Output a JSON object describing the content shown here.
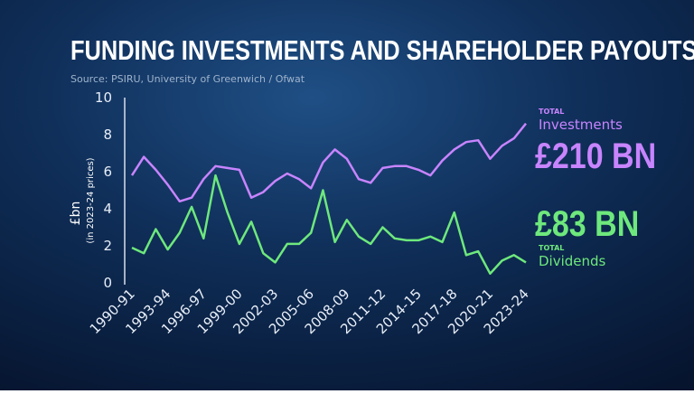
{
  "chart_data": {
    "type": "line",
    "title": "FUNDING INVESTMENTS AND SHAREHOLDER PAYOUTS",
    "subtitle": "Source: PSIRU, University of Greenwich / Ofwat",
    "y_label": "£bn",
    "y_sublabel": "(in 2023-24 prices)",
    "categories": [
      "1990-91",
      null,
      null,
      "1993-94",
      null,
      null,
      "1996-97",
      null,
      null,
      "1999-00",
      null,
      null,
      "2002-03",
      null,
      null,
      "2005-06",
      null,
      null,
      "2008-09",
      null,
      null,
      "2011-12",
      null,
      null,
      "2014-15",
      null,
      null,
      "2017-18",
      null,
      null,
      "2020-21",
      null,
      null,
      "2023-24"
    ],
    "ylim": [
      0,
      10
    ],
    "yticks": [
      0,
      2,
      4,
      6,
      8,
      10
    ],
    "grid": false,
    "series": [
      {
        "name": "Investments",
        "color": "#c884ff",
        "total_label": "TOTAL",
        "total": "£210 BN",
        "values": [
          5.8,
          6.8,
          6.1,
          5.3,
          4.4,
          4.6,
          5.6,
          6.3,
          6.2,
          6.1,
          4.6,
          4.9,
          5.5,
          5.9,
          5.6,
          5.1,
          6.5,
          7.2,
          6.7,
          5.6,
          5.4,
          6.2,
          6.3,
          6.3,
          6.1,
          5.8,
          6.6,
          7.2,
          7.6,
          7.7,
          6.7,
          7.4,
          7.8,
          8.6
        ]
      },
      {
        "name": "Dividends",
        "color": "#6ee87c",
        "total_label": "TOTAL",
        "total": "£83 BN",
        "values": [
          1.9,
          1.6,
          2.9,
          1.8,
          2.7,
          4.1,
          2.4,
          5.8,
          3.8,
          2.1,
          3.3,
          1.6,
          1.1,
          2.1,
          2.1,
          2.7,
          5.0,
          2.2,
          3.4,
          2.5,
          2.1,
          3.0,
          2.4,
          2.3,
          2.3,
          2.5,
          2.2,
          3.8,
          1.5,
          1.7,
          0.5,
          1.2,
          1.5,
          1.1
        ]
      }
    ]
  }
}
